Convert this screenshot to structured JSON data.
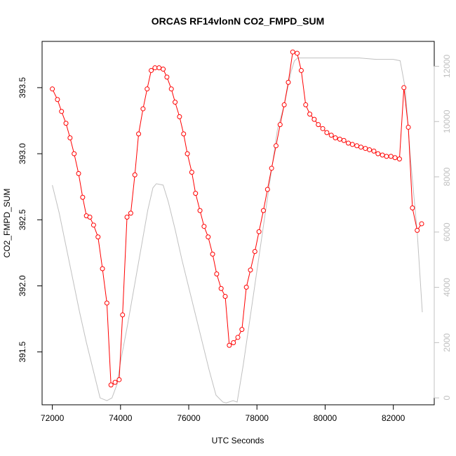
{
  "chart_data": {
    "type": "line",
    "title": "ORCAS RF14vlonN CO2_FMPD_SUM",
    "xlabel": "UTC Seconds",
    "ylabel": "CO2_FMPD_SUM",
    "xlim": [
      71700,
      83200
    ],
    "ylim": [
      391.1,
      393.85
    ],
    "y2lim": [
      -250,
      12900
    ],
    "x_ticks": [
      72000,
      74000,
      76000,
      78000,
      80000,
      82000
    ],
    "y_ticks": [
      391.5,
      392.0,
      392.5,
      393.0,
      393.5
    ],
    "y_tick_labels": [
      "391.5",
      "392.0",
      "392.5",
      "393.0",
      "393.5"
    ],
    "y2_ticks": [
      0,
      2000,
      4000,
      6000,
      8000,
      10000,
      12000
    ],
    "colors": {
      "primary": "#ff0000",
      "secondary": "#c0c0c0",
      "axis": "#000000"
    },
    "series": [
      {
        "role": "primary",
        "marker": "open-circle",
        "x": [
          72000,
          72150,
          72270,
          72400,
          72520,
          72640,
          72770,
          72890,
          73000,
          73100,
          73210,
          73340,
          73470,
          73600,
          73720,
          73840,
          73960,
          74060,
          74190,
          74300,
          74420,
          74530,
          74660,
          74780,
          74900,
          75010,
          75130,
          75250,
          75360,
          75490,
          75600,
          75730,
          75850,
          75960,
          76090,
          76200,
          76330,
          76450,
          76570,
          76700,
          76820,
          76950,
          77070,
          77190,
          77310,
          77440,
          77560,
          77690,
          77810,
          77940,
          78060,
          78190,
          78310,
          78430,
          78560,
          78680,
          78800,
          78920,
          79050,
          79180,
          79300,
          79430,
          79550,
          79680,
          79800,
          79930,
          80050,
          80180,
          80300,
          80430,
          80550,
          80680,
          80800,
          80930,
          81050,
          81180,
          81300,
          81430,
          81550,
          81680,
          81800,
          81930,
          82050,
          82180,
          82310,
          82440,
          82560,
          82700,
          82830
        ],
        "y": [
          393.49,
          393.41,
          393.32,
          393.23,
          393.12,
          393.0,
          392.85,
          392.67,
          392.53,
          392.52,
          392.46,
          392.37,
          392.13,
          391.87,
          391.25,
          391.27,
          391.29,
          391.78,
          392.52,
          392.55,
          392.84,
          393.15,
          393.34,
          393.49,
          393.63,
          393.65,
          393.65,
          393.64,
          393.58,
          393.49,
          393.39,
          393.28,
          393.15,
          393.0,
          392.86,
          392.7,
          392.57,
          392.45,
          392.37,
          392.24,
          392.09,
          391.98,
          391.92,
          391.55,
          391.57,
          391.61,
          391.67,
          391.99,
          392.12,
          392.26,
          392.41,
          392.57,
          392.73,
          392.89,
          393.06,
          393.22,
          393.37,
          393.54,
          393.77,
          393.76,
          393.63,
          393.37,
          393.3,
          393.26,
          393.22,
          393.19,
          393.16,
          393.14,
          393.12,
          393.11,
          393.1,
          393.08,
          393.07,
          393.06,
          393.05,
          393.04,
          393.03,
          393.02,
          393.0,
          392.99,
          392.98,
          392.98,
          392.97,
          392.96,
          393.5,
          393.2,
          392.59,
          392.42,
          392.47
        ]
      },
      {
        "role": "secondary",
        "x": [
          72000,
          72200,
          72400,
          72600,
          72800,
          73000,
          73200,
          73400,
          73600,
          73750,
          73900,
          74000,
          74200,
          74400,
          74600,
          74800,
          74950,
          75050,
          75250,
          75400,
          75600,
          75800,
          76000,
          76200,
          76400,
          76600,
          76800,
          77000,
          77100,
          77300,
          77420,
          77600,
          77800,
          78000,
          78200,
          78400,
          78600,
          78800,
          79000,
          79100,
          79200,
          79400,
          80000,
          80500,
          81000,
          81500,
          82000,
          82200,
          82350,
          82500,
          82700,
          82850
        ],
        "y": [
          7700,
          6700,
          5500,
          4300,
          3100,
          2000,
          1000,
          0,
          -100,
          0,
          500,
          1300,
          2600,
          4000,
          5400,
          6800,
          7600,
          7750,
          7700,
          7100,
          6100,
          5000,
          4000,
          3000,
          2000,
          1000,
          100,
          -150,
          -180,
          -100,
          -150,
          1200,
          2900,
          4600,
          6300,
          8000,
          9700,
          10600,
          11800,
          12200,
          12300,
          12300,
          12300,
          12300,
          12300,
          12250,
          12250,
          12200,
          11200,
          8700,
          6000,
          3100
        ]
      }
    ]
  }
}
